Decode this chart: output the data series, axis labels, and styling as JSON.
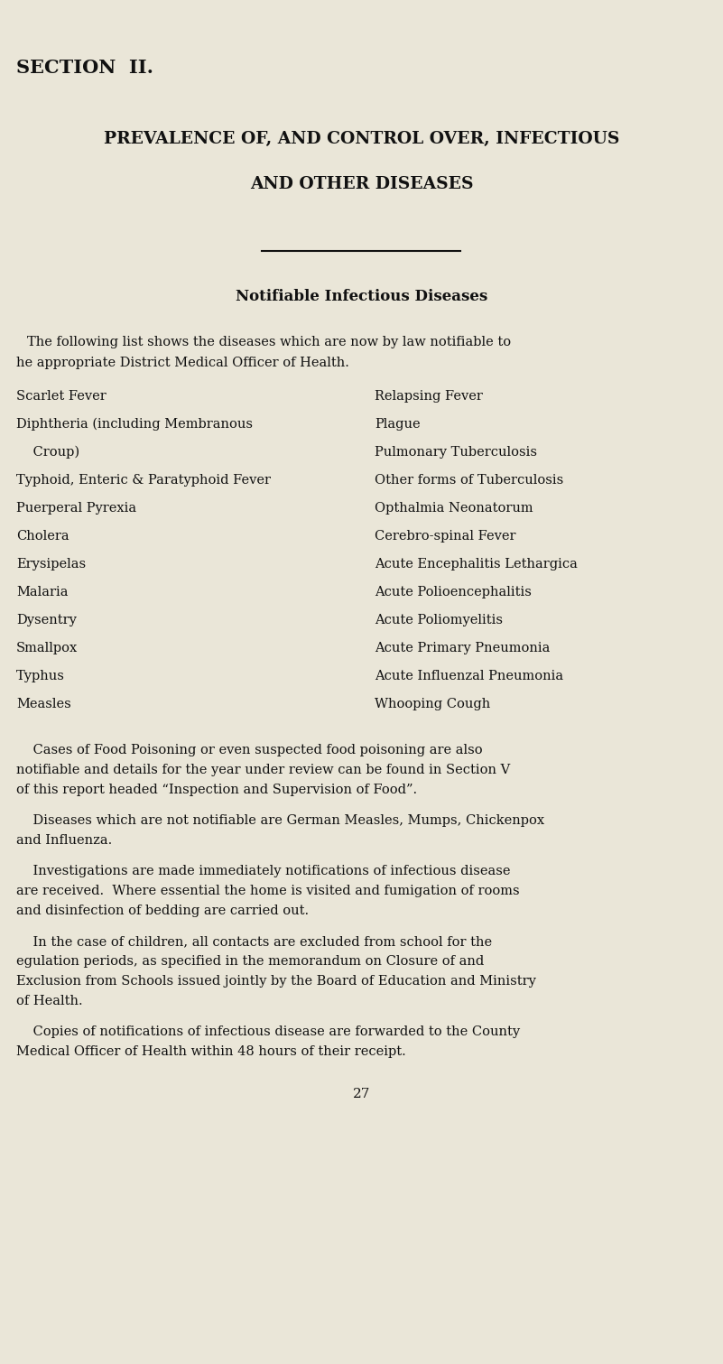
{
  "bg_color": "#eae6d8",
  "text_color": "#111111",
  "page_number": "27",
  "section_header": "SECTION  II.",
  "title_line1": "PREVALENCE OF, AND CONTROL OVER, INFECTIOUS",
  "title_line2": "AND OTHER DISEASES",
  "subtitle": "Notifiable Infectious Diseases",
  "left_col": [
    "Scarlet Fever",
    "Diphtheria (including Membranous",
    "    Croup)",
    "Typhoid, Enteric & Paratyphoid Fever",
    "Puerperal Pyrexia",
    "Cholera",
    "Erysipelas",
    "Malaria",
    "Dysentry",
    "Smallpox",
    "Typhus",
    "Measles"
  ],
  "right_col": [
    "Relapsing Fever",
    "Plague",
    "Pulmonary Tuberculosis",
    "Other forms of Tuberculosis",
    "Opthalmia Neonatorum",
    "Cerebro-spinal Fever",
    "Acute Encephalitis Lethargica",
    "Acute Polioencephalitis",
    "Acute Poliomyelitis",
    "Acute Primary Pneumonia",
    "Acute Influenzal Pneumonia",
    "Whooping Cough"
  ],
  "para1_lines": [
    "    Cases of Food Poisoning or even suspected food poisoning are also",
    "notifiable and details for the year under review can be found in Section V",
    "of this report headed “Inspection and Supervision of Food”."
  ],
  "para2_lines": [
    "    Diseases which are not notifiable are German Measles, Mumps, Chickenpox",
    "and Influenza."
  ],
  "para3_lines": [
    "    Investigations are made immediately notifications of infectious disease",
    "are received.  Where essential the home is visited and fumigation of rooms",
    "and disinfection of bedding are carried out."
  ],
  "para4_lines": [
    "    In the case of children, all contacts are excluded from school for the",
    "egulation periods, as specified in the memorandum on Closure of and",
    "Exclusion from Schools issued jointly by the Board of Education and Ministry",
    "of Health."
  ],
  "para5_lines": [
    "    Copies of notifications of infectious disease are forwarded to the County",
    "Medical Officer of Health within 48 hours of their receipt."
  ],
  "fig_width": 8.01,
  "fig_height": 15.11,
  "dpi": 100
}
